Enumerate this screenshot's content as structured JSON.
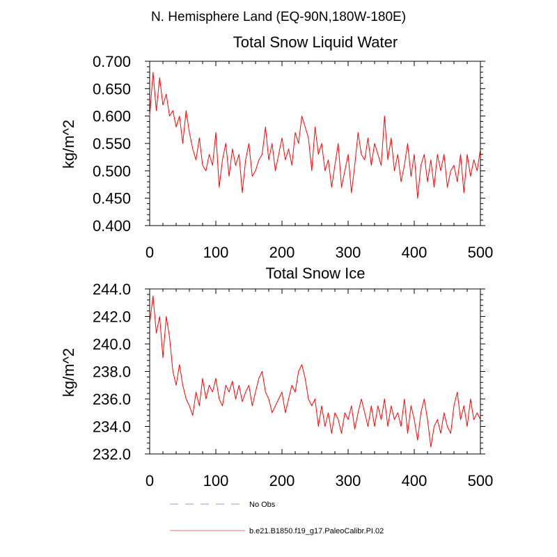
{
  "figure_title": "N. Hemisphere Land (EQ-90N,180W-180E)",
  "chart_data": [
    {
      "type": "line",
      "title": "Total Snow Liquid Water",
      "xlabel": "",
      "ylabel": "kg/m^2",
      "xlim": [
        0,
        500
      ],
      "ylim": [
        0.4,
        0.7
      ],
      "x_ticks": [
        0,
        100,
        200,
        300,
        400,
        500
      ],
      "x_tick_labels": [
        "0",
        "100",
        "200",
        "300",
        "400",
        "500"
      ],
      "y_ticks": [
        0.4,
        0.45,
        0.5,
        0.55,
        0.6,
        0.65,
        0.7
      ],
      "y_tick_labels": [
        "0.400",
        "0.450",
        "0.500",
        "0.550",
        "0.600",
        "0.650",
        "0.700"
      ],
      "series": [
        {
          "name": "b.e21.B1850.f19_g17.PaleoCalibr.PI.02",
          "color": "#ff0000",
          "x": [
            0,
            5,
            10,
            15,
            20,
            25,
            30,
            35,
            40,
            45,
            50,
            55,
            60,
            65,
            70,
            75,
            80,
            85,
            90,
            95,
            100,
            105,
            110,
            115,
            120,
            125,
            130,
            135,
            140,
            145,
            150,
            155,
            160,
            165,
            170,
            175,
            180,
            185,
            190,
            195,
            200,
            205,
            210,
            215,
            220,
            225,
            230,
            235,
            240,
            245,
            250,
            255,
            260,
            265,
            270,
            275,
            280,
            285,
            290,
            295,
            300,
            305,
            310,
            315,
            320,
            325,
            330,
            335,
            340,
            345,
            350,
            355,
            360,
            365,
            370,
            375,
            380,
            385,
            390,
            395,
            400,
            405,
            410,
            415,
            420,
            425,
            430,
            435,
            440,
            445,
            450,
            455,
            460,
            465,
            470,
            475,
            480,
            485,
            490,
            495,
            500
          ],
          "values": [
            0.6,
            0.68,
            0.61,
            0.67,
            0.62,
            0.64,
            0.6,
            0.61,
            0.58,
            0.6,
            0.55,
            0.61,
            0.57,
            0.54,
            0.52,
            0.56,
            0.51,
            0.5,
            0.53,
            0.51,
            0.57,
            0.47,
            0.52,
            0.55,
            0.49,
            0.54,
            0.51,
            0.53,
            0.46,
            0.52,
            0.55,
            0.49,
            0.5,
            0.52,
            0.53,
            0.58,
            0.52,
            0.55,
            0.5,
            0.53,
            0.56,
            0.52,
            0.54,
            0.51,
            0.57,
            0.55,
            0.6,
            0.58,
            0.56,
            0.5,
            0.58,
            0.53,
            0.55,
            0.5,
            0.52,
            0.47,
            0.51,
            0.55,
            0.47,
            0.5,
            0.53,
            0.46,
            0.51,
            0.57,
            0.53,
            0.52,
            0.56,
            0.51,
            0.55,
            0.53,
            0.51,
            0.6,
            0.52,
            0.56,
            0.5,
            0.53,
            0.48,
            0.51,
            0.55,
            0.49,
            0.53,
            0.45,
            0.51,
            0.53,
            0.48,
            0.52,
            0.47,
            0.53,
            0.5,
            0.53,
            0.47,
            0.5,
            0.51,
            0.48,
            0.53,
            0.46,
            0.53,
            0.49,
            0.52,
            0.5,
            0.54
          ]
        },
        {
          "name": "No Obs",
          "color": "#aaaaee",
          "values": []
        }
      ]
    },
    {
      "type": "line",
      "title": "Total Snow Ice",
      "xlabel": "",
      "ylabel": "kg/m^2",
      "xlim": [
        0,
        500
      ],
      "ylim": [
        232.0,
        244.0
      ],
      "x_ticks": [
        0,
        100,
        200,
        300,
        400,
        500
      ],
      "x_tick_labels": [
        "0",
        "100",
        "200",
        "300",
        "400",
        "500"
      ],
      "y_ticks": [
        232,
        234,
        236,
        238,
        240,
        242,
        244
      ],
      "y_tick_labels": [
        "232.0",
        "234.0",
        "236.0",
        "238.0",
        "240.0",
        "242.0",
        "244.0"
      ],
      "series": [
        {
          "name": "b.e21.B1850.f19_g17.PaleoCalibr.PI.02",
          "color": "#ff0000",
          "x": [
            0,
            5,
            10,
            15,
            20,
            25,
            30,
            35,
            40,
            45,
            50,
            55,
            60,
            65,
            70,
            75,
            80,
            85,
            90,
            95,
            100,
            105,
            110,
            115,
            120,
            125,
            130,
            135,
            140,
            145,
            150,
            155,
            160,
            165,
            170,
            175,
            180,
            185,
            190,
            195,
            200,
            205,
            210,
            215,
            220,
            225,
            230,
            235,
            240,
            245,
            250,
            255,
            260,
            265,
            270,
            275,
            280,
            285,
            290,
            295,
            300,
            305,
            310,
            315,
            320,
            325,
            330,
            335,
            340,
            345,
            350,
            355,
            360,
            365,
            370,
            375,
            380,
            385,
            390,
            395,
            400,
            405,
            410,
            415,
            420,
            425,
            430,
            435,
            440,
            445,
            450,
            455,
            460,
            465,
            470,
            475,
            480,
            485,
            490,
            495,
            500
          ],
          "values": [
            241.5,
            243.5,
            240.8,
            242,
            239,
            242,
            240.5,
            238,
            237,
            238.5,
            237,
            236,
            235.5,
            234.8,
            236.5,
            235.5,
            237.5,
            236,
            237,
            236.5,
            237.5,
            236,
            235.5,
            237,
            236.5,
            237.3,
            236,
            237,
            235.8,
            236.5,
            237,
            235.5,
            236.5,
            237.5,
            238,
            236.5,
            236,
            235,
            235.5,
            236,
            236.5,
            235,
            236,
            237,
            236.5,
            238,
            238.5,
            237.5,
            236,
            235.5,
            236,
            234,
            235.5,
            234,
            235,
            233.5,
            235,
            234.5,
            233.5,
            235,
            234.5,
            235.5,
            233.8,
            235,
            236,
            235,
            234,
            235.5,
            234,
            235.5,
            234.5,
            236,
            234,
            235.5,
            234.5,
            235,
            234,
            236,
            233.5,
            235.5,
            234.5,
            233,
            235,
            236,
            234.5,
            232.5,
            234,
            234.5,
            233.5,
            235,
            234,
            233.5,
            235.5,
            236.5,
            234.5,
            235.5,
            234,
            236,
            234.5,
            235,
            234.5
          ]
        },
        {
          "name": "No Obs",
          "color": "#aaaaee",
          "values": []
        }
      ]
    }
  ],
  "legend": {
    "placement": "bottom",
    "items": [
      {
        "label": "No Obs",
        "color": "#aaaaee",
        "style": "dashed"
      },
      {
        "label": "b.e21.B1850.f19_g17.PaleoCalibr.PI.02",
        "color": "#ff8888",
        "style": "solid"
      }
    ]
  }
}
